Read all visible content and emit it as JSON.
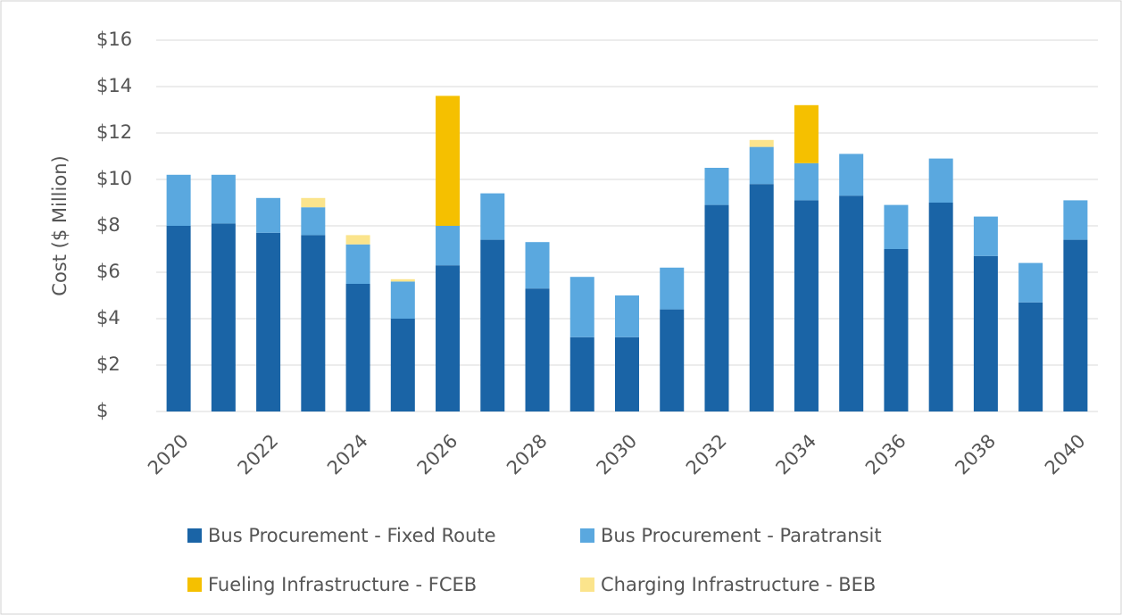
{
  "chart_data": {
    "type": "stacked_bar",
    "y_label": "Cost ($ Million)",
    "categories": [
      "2020",
      null,
      "2022",
      null,
      "2024",
      null,
      "2026",
      null,
      "2028",
      null,
      "2030",
      null,
      "2032",
      null,
      "2034",
      null,
      "2036",
      null,
      "2038",
      null,
      "2040"
    ],
    "ylim": [
      0,
      16
    ],
    "yticks": [
      {
        "value": 0,
        "label": "$"
      },
      {
        "value": 2,
        "label": "$2"
      },
      {
        "value": 4,
        "label": "$4"
      },
      {
        "value": 6,
        "label": "$6"
      },
      {
        "value": 8,
        "label": "$8"
      },
      {
        "value": 10,
        "label": "$10"
      },
      {
        "value": 12,
        "label": "$12"
      },
      {
        "value": 14,
        "label": "$14"
      },
      {
        "value": 16,
        "label": "$16"
      }
    ],
    "grid": true,
    "legend": "bottom",
    "series": [
      {
        "name": "Bus Procurement - Fixed Route",
        "color": "#1a64a6",
        "values": [
          8.0,
          8.1,
          7.7,
          7.6,
          5.5,
          4.0,
          6.3,
          7.4,
          5.3,
          3.2,
          3.2,
          4.4,
          8.9,
          9.8,
          9.1,
          9.3,
          7.0,
          9.0,
          6.7,
          4.7,
          7.4
        ]
      },
      {
        "name": "Bus Procurement - Paratransit",
        "color": "#5aa8df",
        "values": [
          2.2,
          2.1,
          1.5,
          1.2,
          1.7,
          1.6,
          1.7,
          2.0,
          2.0,
          2.6,
          1.8,
          1.8,
          1.6,
          1.6,
          1.6,
          1.8,
          1.9,
          1.9,
          1.7,
          1.7,
          1.7
        ]
      },
      {
        "name": "Fueling Infrastructure - FCEB",
        "color": "#f5c000",
        "values": [
          0,
          0,
          0,
          0,
          0,
          0,
          5.6,
          0,
          0,
          0,
          0,
          0,
          0,
          0,
          2.5,
          0,
          0,
          0,
          0,
          0,
          0
        ]
      },
      {
        "name": "Charging Infrastructure - BEB",
        "color": "#fbe48c",
        "values": [
          0,
          0,
          0,
          0.4,
          0.4,
          0.1,
          0,
          0,
          0,
          0,
          0,
          0,
          0,
          0.3,
          0,
          0,
          0,
          0,
          0,
          0,
          0
        ]
      }
    ]
  }
}
